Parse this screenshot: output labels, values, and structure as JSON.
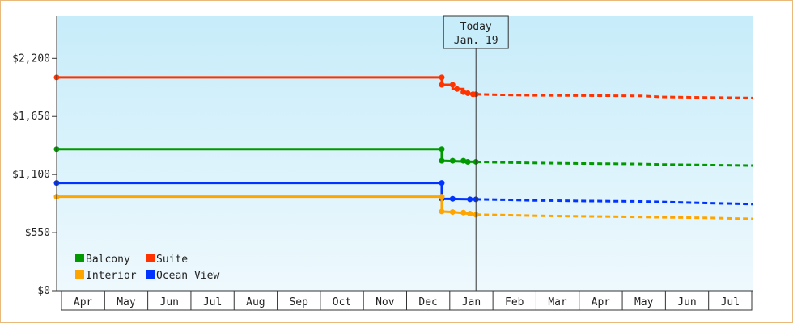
{
  "chart_data": {
    "type": "line",
    "y_axis": {
      "ticks": [
        {
          "value": 0,
          "label": "$0"
        },
        {
          "value": 550,
          "label": "$550"
        },
        {
          "value": 1100,
          "label": "$1,100"
        },
        {
          "value": 1650,
          "label": "$1,650"
        },
        {
          "value": 2200,
          "label": "$2,200"
        }
      ],
      "ylim": [
        0,
        2600
      ]
    },
    "x_axis": {
      "months": [
        "Apr",
        "May",
        "Jun",
        "Jul",
        "Aug",
        "Sep",
        "Oct",
        "Nov",
        "Dec",
        "Jan",
        "Feb",
        "Mar",
        "Apr",
        "May",
        "Jun",
        "Jul"
      ],
      "xlim": [
        0,
        16.1
      ]
    },
    "today": {
      "x": 9.69,
      "line1": "Today",
      "line2": "Jan. 19"
    },
    "series": [
      {
        "name": "Suite",
        "color": "#ff3300",
        "actual": [
          [
            0,
            2020
          ],
          [
            8.9,
            2020
          ],
          [
            8.9,
            1950
          ],
          [
            9.15,
            1950
          ],
          [
            9.15,
            1910
          ],
          [
            9.4,
            1910
          ],
          [
            9.4,
            1870
          ],
          [
            9.69,
            1860
          ]
        ],
        "markers": [
          [
            0,
            2020
          ],
          [
            8.9,
            2020
          ],
          [
            8.9,
            1950
          ],
          [
            9.15,
            1950
          ],
          [
            9.25,
            1910
          ],
          [
            9.4,
            1880
          ],
          [
            9.5,
            1870
          ],
          [
            9.62,
            1860
          ],
          [
            9.69,
            1860
          ]
        ],
        "forecast": [
          [
            9.69,
            1860
          ],
          [
            10.2,
            1855
          ],
          [
            11,
            1850
          ],
          [
            12,
            1848
          ],
          [
            13.5,
            1845
          ],
          [
            14,
            1835
          ],
          [
            15,
            1830
          ],
          [
            16.1,
            1825
          ]
        ]
      },
      {
        "name": "Balcony",
        "color": "#009900",
        "actual": [
          [
            0,
            1340
          ],
          [
            8.9,
            1340
          ],
          [
            8.9,
            1230
          ],
          [
            9.69,
            1220
          ]
        ],
        "markers": [
          [
            0,
            1340
          ],
          [
            8.9,
            1340
          ],
          [
            8.9,
            1230
          ],
          [
            9.15,
            1230
          ],
          [
            9.4,
            1230
          ],
          [
            9.5,
            1220
          ],
          [
            9.69,
            1220
          ]
        ],
        "forecast": [
          [
            9.69,
            1220
          ],
          [
            10.3,
            1215
          ],
          [
            11,
            1210
          ],
          [
            12,
            1205
          ],
          [
            13.5,
            1200
          ],
          [
            14,
            1195
          ],
          [
            15,
            1190
          ],
          [
            16.1,
            1185
          ]
        ]
      },
      {
        "name": "Ocean View",
        "color": "#0033ff",
        "actual": [
          [
            0,
            1020
          ],
          [
            8.9,
            1020
          ],
          [
            8.9,
            870
          ],
          [
            9.69,
            865
          ]
        ],
        "markers": [
          [
            0,
            1020
          ],
          [
            8.9,
            1020
          ],
          [
            8.9,
            870
          ],
          [
            9.15,
            870
          ],
          [
            9.55,
            865
          ],
          [
            9.69,
            865
          ]
        ],
        "forecast": [
          [
            9.69,
            865
          ],
          [
            10.5,
            860
          ],
          [
            11,
            855
          ],
          [
            12,
            850
          ],
          [
            13.5,
            845
          ],
          [
            14,
            840
          ],
          [
            15,
            830
          ],
          [
            16.1,
            820
          ]
        ]
      },
      {
        "name": "Interior",
        "color": "#ffa500",
        "actual": [
          [
            0,
            890
          ],
          [
            8.9,
            890
          ],
          [
            8.9,
            750
          ],
          [
            9.15,
            745
          ],
          [
            9.4,
            735
          ],
          [
            9.69,
            720
          ]
        ],
        "markers": [
          [
            0,
            890
          ],
          [
            8.9,
            890
          ],
          [
            8.9,
            750
          ],
          [
            9.15,
            745
          ],
          [
            9.4,
            740
          ],
          [
            9.55,
            730
          ],
          [
            9.69,
            720
          ]
        ],
        "forecast": [
          [
            9.69,
            720
          ],
          [
            10.5,
            715
          ],
          [
            11,
            710
          ],
          [
            12,
            705
          ],
          [
            13.2,
            700
          ],
          [
            14,
            695
          ],
          [
            15,
            690
          ],
          [
            16.1,
            680
          ]
        ]
      }
    ],
    "legend": {
      "placement": "bottom-left",
      "rows": [
        [
          "Balcony",
          "Suite"
        ],
        [
          "Interior",
          "Ocean View"
        ]
      ]
    },
    "colors": {
      "bg_top": "#c7ecfa",
      "bg_bottom": "#eef9fd",
      "frame": "#e8b97a"
    }
  }
}
